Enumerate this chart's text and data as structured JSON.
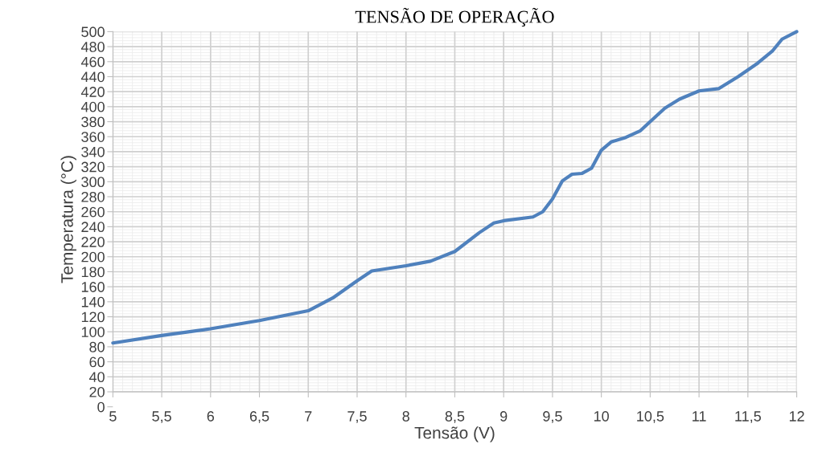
{
  "chart_data": {
    "type": "line",
    "title": "TENSÃO DE OPERAÇÃO",
    "xlabel": "Tensão (V)",
    "ylabel": "Temperatura (°C)",
    "x": [
      5,
      5.5,
      6,
      6.5,
      7,
      7.25,
      7.5,
      7.65,
      7.8,
      8,
      8.25,
      8.5,
      8.75,
      8.9,
      9,
      9.3,
      9.4,
      9.5,
      9.6,
      9.7,
      9.8,
      9.9,
      10,
      10.1,
      10.25,
      10.4,
      10.5,
      10.65,
      10.8,
      11,
      11.2,
      11.4,
      11.6,
      11.75,
      11.85,
      12
    ],
    "series": [
      {
        "color": "#4f81bd",
        "values": [
          85,
          95,
          104,
          115,
          128,
          145,
          168,
          181,
          184,
          188,
          194,
          207,
          232,
          245,
          248,
          253,
          260,
          277,
          301,
          310,
          311,
          318,
          342,
          353,
          359,
          368,
          380,
          398,
          410,
          421,
          424,
          440,
          458,
          474,
          490,
          500
        ]
      }
    ],
    "xlim": [
      5,
      12
    ],
    "xticks": [
      5,
      {
        "value": 5.5,
        "label": "5,5"
      },
      6,
      {
        "value": 6.5,
        "label": "6,5"
      },
      7,
      {
        "value": 7.5,
        "label": "7,5"
      },
      8,
      {
        "value": 8.5,
        "label": "8,5"
      },
      9,
      {
        "value": 9.5,
        "label": "9,5"
      },
      10,
      {
        "value": 10.5,
        "label": "10,5"
      },
      11,
      {
        "value": 11.5,
        "label": "11,5"
      },
      12
    ],
    "ylim": [
      0,
      500
    ],
    "yticks": [
      0,
      20,
      40,
      60,
      80,
      100,
      120,
      140,
      160,
      180,
      200,
      220,
      240,
      260,
      280,
      300,
      320,
      340,
      360,
      380,
      400,
      420,
      440,
      460,
      480,
      500
    ],
    "grid": true,
    "marker": "none",
    "line_style": "solid"
  }
}
